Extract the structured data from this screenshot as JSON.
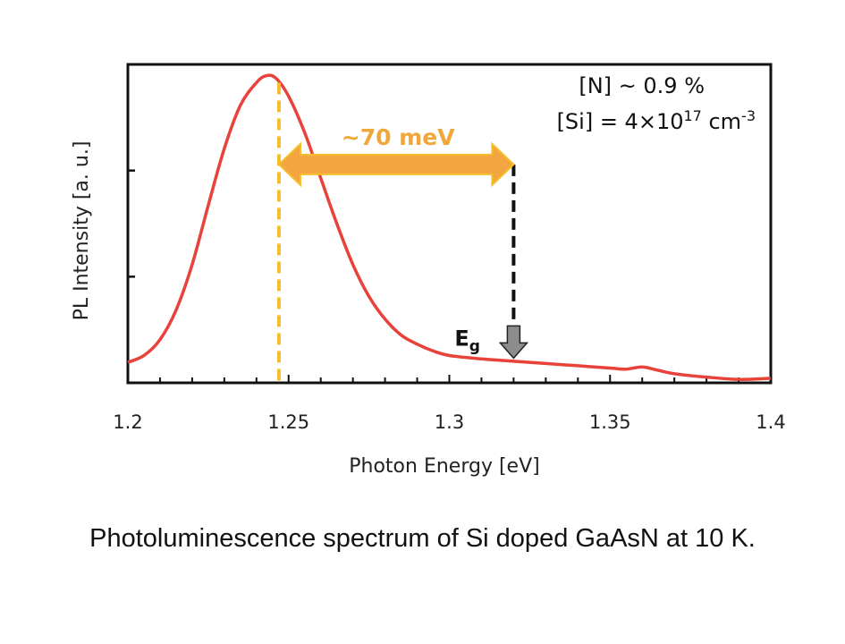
{
  "chart_data": {
    "type": "line",
    "title": "",
    "xlabel": "Photon Energy [eV]",
    "ylabel": "PL Intensity [a. u.]",
    "xlim": [
      1.2,
      1.4
    ],
    "ylim": [
      0,
      1.4
    ],
    "x_ticks": [
      1.2,
      1.25,
      1.3,
      1.35,
      1.4
    ],
    "x_tick_labels": [
      "1.2",
      "1.25",
      "1.3",
      "1.35",
      "1.4"
    ],
    "y_tick_labels_shown": false,
    "series": [
      {
        "name": "PL spectrum",
        "color": "#e8423a",
        "x": [
          1.2,
          1.205,
          1.21,
          1.215,
          1.22,
          1.225,
          1.23,
          1.235,
          1.24,
          1.243,
          1.246,
          1.25,
          1.255,
          1.26,
          1.265,
          1.27,
          1.275,
          1.28,
          1.285,
          1.29,
          1.295,
          1.3,
          1.31,
          1.32,
          1.33,
          1.34,
          1.35,
          1.355,
          1.36,
          1.365,
          1.37,
          1.38,
          1.39,
          1.4
        ],
        "y": [
          0.09,
          0.12,
          0.19,
          0.32,
          0.52,
          0.78,
          1.03,
          1.22,
          1.32,
          1.35,
          1.34,
          1.26,
          1.1,
          0.9,
          0.7,
          0.52,
          0.38,
          0.28,
          0.21,
          0.17,
          0.14,
          0.12,
          0.105,
          0.095,
          0.085,
          0.075,
          0.065,
          0.06,
          0.07,
          0.055,
          0.04,
          0.025,
          0.015,
          0.02
        ]
      }
    ],
    "annotations": {
      "nitrogen": "[N] ~ 0.9 %",
      "silicon_prefix": "[Si] = 4×10",
      "silicon_exp": "17",
      "silicon_unit": " cm",
      "silicon_unit_exp": "-3",
      "energy_gap_label": "~70 meV",
      "eg_main": "E",
      "eg_sub": "g",
      "peak_x": 1.247,
      "eg_x": 1.32,
      "arrow_y": 0.96,
      "eg_marker_top_y": 0.25,
      "peak_line_color": "#f6be2c",
      "arrow_fill_color": "#f3a540",
      "arrow_stroke_color": "#f6be2c",
      "energy_label_color": "#f0a73a",
      "eg_arrow_color": "#8c8c8c"
    }
  },
  "caption": "Photoluminescence spectrum of Si doped GaAsN at 10 K."
}
